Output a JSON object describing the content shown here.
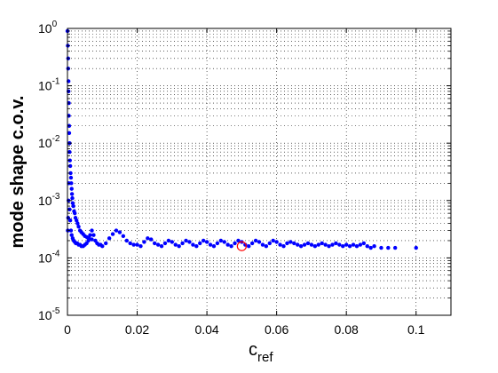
{
  "chart_data": {
    "type": "scatter",
    "title": "",
    "xlabel": "c",
    "xlabel_subscript": "ref",
    "ylabel": "mode shape c.o.v.",
    "xlim": [
      0,
      0.11
    ],
    "ylim": [
      1e-05,
      1
    ],
    "y_scale": "log",
    "grid": true,
    "grid_style": "dotted",
    "x_ticks": [
      "0",
      "0.02",
      "0.04",
      "0.06",
      "0.08",
      "0.1"
    ],
    "y_ticks": [
      {
        "base": "10",
        "exp": "-5"
      },
      {
        "base": "10",
        "exp": "-4"
      },
      {
        "base": "10",
        "exp": "-3"
      },
      {
        "base": "10",
        "exp": "-2"
      },
      {
        "base": "10",
        "exp": "-1"
      },
      {
        "base": "10",
        "exp": "0"
      }
    ],
    "series": [
      {
        "marker": "dot",
        "color": "#0000ff",
        "points": [
          [
            0.0,
            0.9
          ],
          [
            0.0001,
            0.5
          ],
          [
            0.0002,
            0.3
          ],
          [
            0.0002,
            0.2
          ],
          [
            0.0003,
            0.12
          ],
          [
            0.0003,
            0.08
          ],
          [
            0.0004,
            0.05
          ],
          [
            0.0004,
            0.03
          ],
          [
            0.0005,
            0.02
          ],
          [
            0.0005,
            0.015
          ],
          [
            0.0006,
            0.01
          ],
          [
            0.0006,
            0.007
          ],
          [
            0.0007,
            0.005
          ],
          [
            0.0008,
            0.004
          ],
          [
            0.0009,
            0.003
          ],
          [
            0.001,
            0.0025
          ],
          [
            0.0011,
            0.002
          ],
          [
            0.0012,
            0.0016
          ],
          [
            0.0013,
            0.0013
          ],
          [
            0.0014,
            0.0011
          ],
          [
            0.0015,
            0.0009
          ],
          [
            0.0017,
            0.0008
          ],
          [
            0.0019,
            0.00065
          ],
          [
            0.0021,
            0.0006
          ],
          [
            0.0023,
            0.0005
          ],
          [
            0.0026,
            0.00045
          ],
          [
            0.0029,
            0.0004
          ],
          [
            0.0032,
            0.00035
          ],
          [
            0.0036,
            0.0003
          ],
          [
            0.004,
            0.00028
          ],
          [
            0.0045,
            0.00026
          ],
          [
            0.005,
            0.00024
          ],
          [
            0.0056,
            0.00023
          ],
          [
            0.0062,
            0.00022
          ],
          [
            0.007,
            0.00021
          ],
          [
            0.0001,
            0.0003
          ],
          [
            0.0002,
            0.0005
          ],
          [
            0.0003,
            0.001
          ],
          [
            0.0004,
            0.002
          ],
          [
            0.0006,
            0.0007
          ],
          [
            0.0008,
            0.00045
          ],
          [
            0.001,
            0.0003
          ],
          [
            0.0012,
            0.00025
          ],
          [
            0.0015,
            0.00022
          ],
          [
            0.0018,
            0.0002
          ],
          [
            0.0021,
            0.00019
          ],
          [
            0.0024,
            0.00018
          ],
          [
            0.0028,
            0.00018
          ],
          [
            0.0032,
            0.00017
          ],
          [
            0.0036,
            0.00017
          ],
          [
            0.004,
            0.00016
          ],
          [
            0.0045,
            0.00016
          ],
          [
            0.005,
            0.00017
          ],
          [
            0.0055,
            0.00018
          ],
          [
            0.006,
            0.0002
          ],
          [
            0.0065,
            0.00025
          ],
          [
            0.007,
            0.0003
          ],
          [
            0.0075,
            0.00025
          ],
          [
            0.008,
            0.0002
          ],
          [
            0.0085,
            0.00018
          ],
          [
            0.009,
            0.00017
          ],
          [
            0.0095,
            0.00017
          ],
          [
            0.01,
            0.00016
          ],
          [
            0.011,
            0.00018
          ],
          [
            0.012,
            0.00022
          ],
          [
            0.013,
            0.00026
          ],
          [
            0.014,
            0.0003
          ],
          [
            0.015,
            0.00028
          ],
          [
            0.016,
            0.00024
          ],
          [
            0.017,
            0.0002
          ],
          [
            0.018,
            0.00018
          ],
          [
            0.019,
            0.00017
          ],
          [
            0.02,
            0.00017
          ],
          [
            0.021,
            0.00016
          ],
          [
            0.022,
            0.00019
          ],
          [
            0.023,
            0.00022
          ],
          [
            0.024,
            0.00021
          ],
          [
            0.025,
            0.00018
          ],
          [
            0.026,
            0.00017
          ],
          [
            0.027,
            0.00016
          ],
          [
            0.028,
            0.00018
          ],
          [
            0.029,
            0.0002
          ],
          [
            0.03,
            0.00019
          ],
          [
            0.031,
            0.00017
          ],
          [
            0.032,
            0.00016
          ],
          [
            0.033,
            0.00018
          ],
          [
            0.034,
            0.0002
          ],
          [
            0.035,
            0.00019
          ],
          [
            0.036,
            0.00017
          ],
          [
            0.037,
            0.00016
          ],
          [
            0.038,
            0.00018
          ],
          [
            0.039,
            0.0002
          ],
          [
            0.04,
            0.00019
          ],
          [
            0.041,
            0.00017
          ],
          [
            0.042,
            0.00016
          ],
          [
            0.043,
            0.00018
          ],
          [
            0.044,
            0.0002
          ],
          [
            0.045,
            0.00019
          ],
          [
            0.046,
            0.00017
          ],
          [
            0.047,
            0.00016
          ],
          [
            0.048,
            0.00018
          ],
          [
            0.049,
            0.0002
          ],
          [
            0.05,
            0.00019
          ],
          [
            0.051,
            0.00017
          ],
          [
            0.052,
            0.00016
          ],
          [
            0.053,
            0.00018
          ],
          [
            0.054,
            0.0002
          ],
          [
            0.055,
            0.00019
          ],
          [
            0.056,
            0.00017
          ],
          [
            0.057,
            0.00016
          ],
          [
            0.058,
            0.00018
          ],
          [
            0.059,
            0.0002
          ],
          [
            0.06,
            0.00019
          ],
          [
            0.061,
            0.00017
          ],
          [
            0.062,
            0.00016
          ],
          [
            0.063,
            0.00018
          ],
          [
            0.064,
            0.00019
          ],
          [
            0.065,
            0.00018
          ],
          [
            0.066,
            0.00017
          ],
          [
            0.067,
            0.00016
          ],
          [
            0.068,
            0.00017
          ],
          [
            0.069,
            0.00018
          ],
          [
            0.07,
            0.00017
          ],
          [
            0.071,
            0.00016
          ],
          [
            0.072,
            0.00017
          ],
          [
            0.073,
            0.00018
          ],
          [
            0.074,
            0.00017
          ],
          [
            0.075,
            0.00016
          ],
          [
            0.076,
            0.00017
          ],
          [
            0.077,
            0.00018
          ],
          [
            0.078,
            0.00017
          ],
          [
            0.079,
            0.00016
          ],
          [
            0.08,
            0.00017
          ],
          [
            0.081,
            0.00016
          ],
          [
            0.082,
            0.00017
          ],
          [
            0.083,
            0.00016
          ],
          [
            0.084,
            0.00017
          ],
          [
            0.085,
            0.00018
          ],
          [
            0.086,
            0.00016
          ],
          [
            0.087,
            0.00015
          ],
          [
            0.088,
            0.00016
          ],
          [
            0.09,
            0.00015
          ],
          [
            0.092,
            0.00015
          ],
          [
            0.094,
            0.00015
          ],
          [
            0.1,
            0.00015
          ]
        ]
      }
    ],
    "highlight": {
      "x": 0.05,
      "y": 0.00016,
      "marker": "circle",
      "color": "#ff0000"
    }
  }
}
